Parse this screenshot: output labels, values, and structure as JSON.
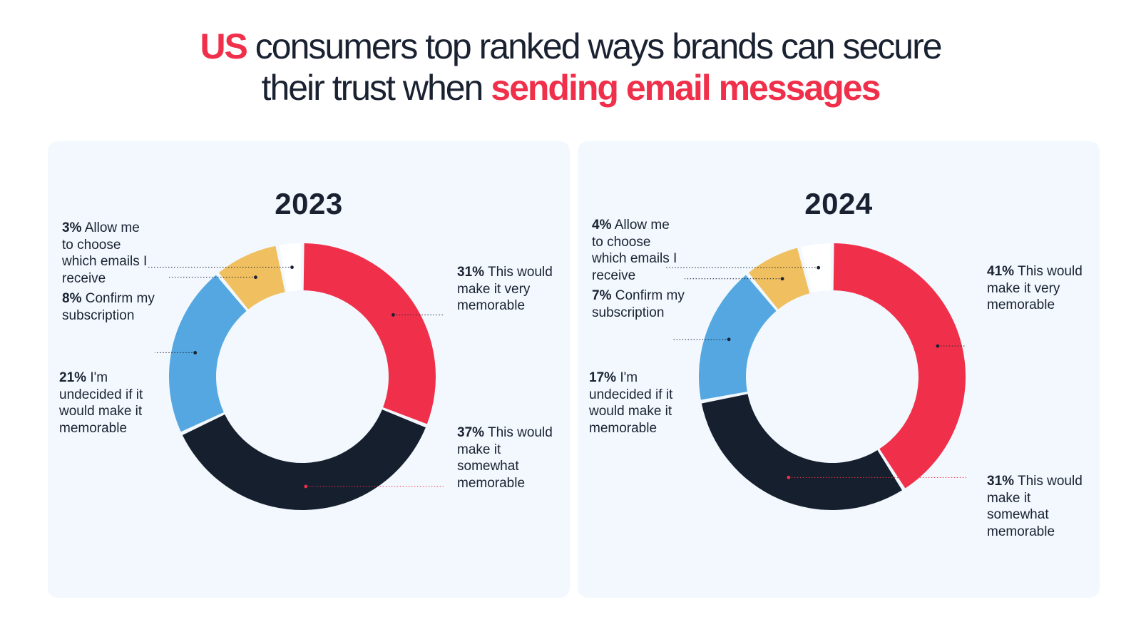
{
  "title": {
    "hl1": "US",
    "part1": " consumers top ranked ways brands can secure",
    "part2": "their trust when ",
    "hl2": "sending email messages"
  },
  "colors": {
    "red": "#f0304a",
    "navy": "#161f2e",
    "blue": "#54a7e0",
    "yellow": "#f0c060",
    "white": "#ffffff",
    "panel": "#f2f8fd",
    "text": "#1a2232"
  },
  "chart_data": [
    {
      "type": "pie",
      "title": "2023",
      "series": [
        {
          "label": "This would make it very memorable",
          "pct_label": "31%",
          "value": 31,
          "color": "#f0304a"
        },
        {
          "label": "This would make it somewhat memorable",
          "pct_label": "37%",
          "value": 37,
          "color": "#161f2e"
        },
        {
          "label": "I'm undecided if it would make it memorable",
          "pct_label": "21%",
          "value": 21,
          "color": "#54a7e0"
        },
        {
          "label": "Confirm my subscription",
          "pct_label": "8%",
          "value": 8,
          "color": "#f0c060"
        },
        {
          "label": "Allow me to choose which emails I receive",
          "pct_label": "3%",
          "value": 3,
          "color": "#ffffff"
        }
      ]
    },
    {
      "type": "pie",
      "title": "2024",
      "series": [
        {
          "label": "This would make it very memorable",
          "pct_label": "41%",
          "value": 41,
          "color": "#f0304a"
        },
        {
          "label": "This would make it somewhat memorable",
          "pct_label": "31%",
          "value": 31,
          "color": "#161f2e"
        },
        {
          "label": "I'm undecided if it would make it memorable",
          "pct_label": "17%",
          "value": 17,
          "color": "#54a7e0"
        },
        {
          "label": "Confirm my subscription",
          "pct_label": "7%",
          "value": 7,
          "color": "#f0c060"
        },
        {
          "label": "Allow me to choose which emails I receive",
          "pct_label": "4%",
          "value": 4,
          "color": "#ffffff"
        }
      ]
    }
  ]
}
